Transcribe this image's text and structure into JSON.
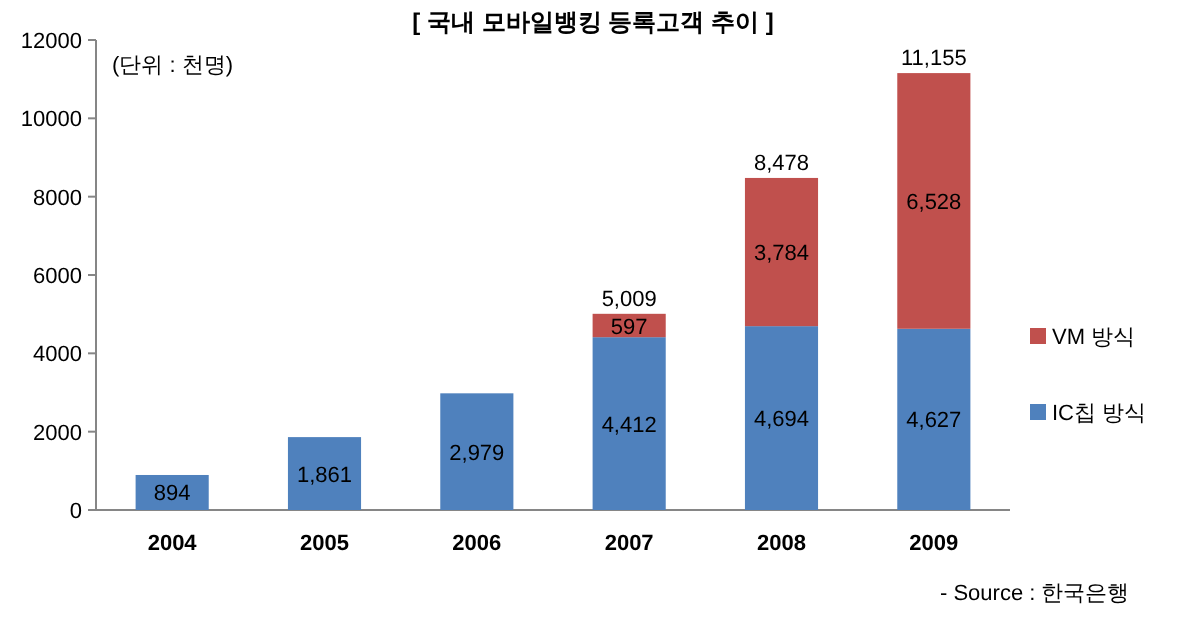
{
  "chart_data": {
    "type": "bar",
    "title": "[ 국내 모바일뱅킹 등록고객 추이 ]",
    "categories": [
      "2004",
      "2005",
      "2006",
      "2007",
      "2008",
      "2009"
    ],
    "stacked": true,
    "series": [
      {
        "name": "IC칩 방식",
        "color": "#4f81bd",
        "values": [
          894,
          1861,
          2979,
          4412,
          4694,
          4627
        ],
        "value_labels": [
          "894",
          "1,861",
          "2,979",
          "4,412",
          "4,694",
          "4,627"
        ]
      },
      {
        "name": "VM 방식",
        "color": "#c0504d",
        "values": [
          null,
          null,
          null,
          597,
          3784,
          6528
        ],
        "value_labels": [
          null,
          null,
          null,
          "597",
          "3,784",
          "6,528"
        ]
      }
    ],
    "totals": [
      null,
      null,
      null,
      "5,009",
      "8,478",
      "11,155"
    ],
    "ylim": [
      0,
      12000
    ],
    "yticks": [
      0,
      2000,
      4000,
      6000,
      8000,
      10000,
      12000
    ],
    "legend": "right",
    "annotations": [
      "(단위 : 천명)",
      "- Source : 한국은행"
    ]
  }
}
